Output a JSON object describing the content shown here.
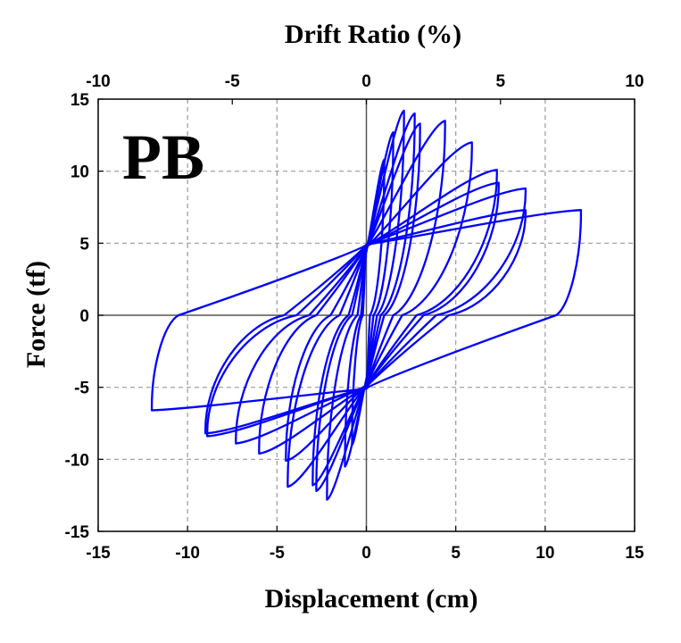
{
  "chart_data": {
    "type": "line",
    "panel_label": "PB",
    "xlabel": "Displacement (cm)",
    "x2label": "Drift Ratio (%)",
    "ylabel": "Force (tf)",
    "xlim": [
      -15,
      15
    ],
    "x2lim": [
      -10,
      10
    ],
    "ylim": [
      -15,
      15
    ],
    "xticks": [
      -15,
      -10,
      -5,
      0,
      5,
      10,
      15
    ],
    "x2ticks": [
      -10,
      -5,
      0,
      5,
      10
    ],
    "yticks": [
      -15,
      -10,
      -5,
      0,
      5,
      10,
      15
    ],
    "grid": true,
    "line_color": "#0000ff",
    "grid_color": "#9a9a9a",
    "series": [
      {
        "cycles": [
          {
            "pos_peak": [
              1.0,
              10.8
            ],
            "neg_peak": [
              -0.8,
              -9.0
            ],
            "pos_zero": 0.2,
            "neg_zero": -0.2,
            "pos_int": 4.4,
            "neg_int": -4.4
          },
          {
            "pos_peak": [
              1.5,
              12.7
            ],
            "neg_peak": [
              -1.2,
              -10.5
            ],
            "pos_zero": 0.4,
            "neg_zero": -0.3,
            "pos_int": 4.5,
            "neg_int": -4.5
          },
          {
            "pos_peak": [
              2.1,
              14.2
            ],
            "neg_peak": [
              -2.2,
              -12.8
            ],
            "pos_zero": 0.6,
            "neg_zero": -0.5,
            "pos_int": 4.6,
            "neg_int": -4.6
          },
          {
            "pos_peak": [
              2.7,
              14.0
            ],
            "neg_peak": [
              -2.8,
              -12.2
            ],
            "pos_zero": 0.8,
            "neg_zero": -0.8,
            "pos_int": 4.6,
            "neg_int": -4.7
          },
          {
            "pos_peak": [
              3.0,
              13.3
            ],
            "neg_peak": [
              -3.0,
              -11.8
            ],
            "pos_zero": 1.0,
            "neg_zero": -1.0,
            "pos_int": 4.6,
            "neg_int": -4.7
          },
          {
            "pos_peak": [
              4.4,
              13.5
            ],
            "neg_peak": [
              -4.4,
              -11.9
            ],
            "pos_zero": 1.5,
            "neg_zero": -1.5,
            "pos_int": 4.7,
            "neg_int": -4.8
          },
          {
            "pos_peak": [
              5.9,
              12.0
            ],
            "neg_peak": [
              -4.5,
              -10.1
            ],
            "pos_zero": 2.0,
            "neg_zero": -2.0,
            "pos_int": 4.7,
            "neg_int": -4.8
          },
          {
            "pos_peak": [
              7.3,
              10.1
            ],
            "neg_peak": [
              -6.0,
              -9.6
            ],
            "pos_zero": 2.8,
            "neg_zero": -2.8,
            "pos_int": 4.8,
            "neg_int": -4.9
          },
          {
            "pos_peak": [
              7.4,
              9.2
            ],
            "neg_peak": [
              -7.3,
              -8.9
            ],
            "pos_zero": 3.2,
            "neg_zero": -3.2,
            "pos_int": 4.8,
            "neg_int": -4.9
          },
          {
            "pos_peak": [
              8.9,
              8.8
            ],
            "neg_peak": [
              -8.9,
              -8.4
            ],
            "pos_zero": 3.9,
            "neg_zero": -3.9,
            "pos_int": 4.9,
            "neg_int": -5.0
          },
          {
            "pos_peak": [
              8.9,
              7.3
            ],
            "neg_peak": [
              -9.0,
              -8.2
            ],
            "pos_zero": 4.6,
            "neg_zero": -4.6,
            "pos_int": 4.9,
            "neg_int": -5.0
          },
          {
            "pos_peak": [
              12.0,
              7.3
            ],
            "neg_peak": [
              -12.0,
              -6.6
            ],
            "pos_zero": 10.6,
            "neg_zero": -10.5,
            "pos_int": 4.9,
            "neg_int": -5.1
          }
        ]
      }
    ]
  }
}
